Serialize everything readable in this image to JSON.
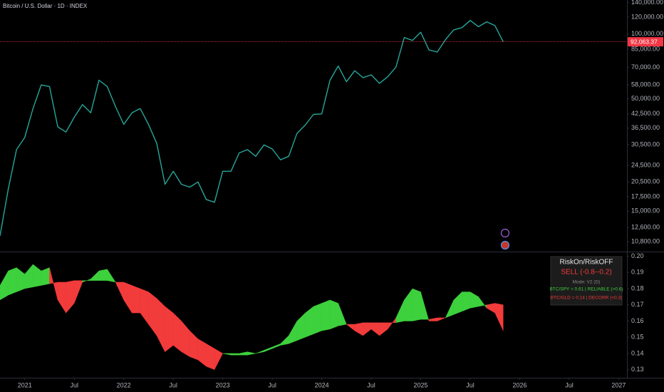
{
  "chart_data": [
    {
      "type": "line",
      "title": "Bitcoin / U.S. Dollar · 1D · INDEX",
      "x": [
        "2020-10",
        "2020-11",
        "2020-12",
        "2021-01",
        "2021-02",
        "2021-03",
        "2021-04",
        "2021-05",
        "2021-06",
        "2021-07",
        "2021-08",
        "2021-09",
        "2021-10",
        "2021-11",
        "2021-12",
        "2022-01",
        "2022-02",
        "2022-03",
        "2022-04",
        "2022-05",
        "2022-06",
        "2022-07",
        "2022-08",
        "2022-09",
        "2022-10",
        "2022-11",
        "2022-12",
        "2023-01",
        "2023-02",
        "2023-03",
        "2023-04",
        "2023-05",
        "2023-06",
        "2023-07",
        "2023-08",
        "2023-09",
        "2023-10",
        "2023-11",
        "2023-12",
        "2024-01",
        "2024-02",
        "2024-03",
        "2024-04",
        "2024-05",
        "2024-06",
        "2024-07",
        "2024-08",
        "2024-09",
        "2024-10",
        "2024-11",
        "2024-12",
        "2025-01",
        "2025-02",
        "2025-03",
        "2025-04",
        "2025-05",
        "2025-06",
        "2025-07",
        "2025-08",
        "2025-09",
        "2025-10",
        "2025-11"
      ],
      "values": [
        11500,
        19000,
        29000,
        33000,
        45000,
        58000,
        57000,
        37000,
        35000,
        41000,
        47000,
        43000,
        61000,
        57000,
        46000,
        38000,
        43000,
        45000,
        38000,
        31000,
        20000,
        23000,
        20000,
        19400,
        20500,
        17000,
        16500,
        23000,
        23000,
        28000,
        29000,
        27000,
        30500,
        29200,
        26000,
        27000,
        34500,
        37700,
        42300,
        42500,
        61000,
        71000,
        60000,
        67500,
        62700,
        64600,
        59000,
        63300,
        70200,
        96400,
        93400,
        102000,
        84300,
        82500,
        94200,
        104600,
        107100,
        115700,
        108200,
        114000,
        109500,
        92063.37
      ],
      "color": "#26a69a",
      "xlim": [
        "2020-10",
        "2027-02"
      ],
      "ylim": [
        9800,
        144000
      ],
      "log_scale": true,
      "yticks": [
        {
          "value": 140000,
          "label": "140,000.00"
        },
        {
          "value": 120000,
          "label": "120,000.00"
        },
        {
          "value": 100000,
          "label": "100,000.00"
        },
        {
          "value": 85000,
          "label": "85,000.00"
        },
        {
          "value": 70000,
          "label": "70,000.00"
        },
        {
          "value": 58000,
          "label": "58,000.00"
        },
        {
          "value": 50000,
          "label": "50,000.00"
        },
        {
          "value": 42500,
          "label": "42,500.00"
        },
        {
          "value": 36500,
          "label": "36,500.00"
        },
        {
          "value": 30500,
          "label": "30,500.00"
        },
        {
          "value": 24500,
          "label": "24,500.00"
        },
        {
          "value": 20500,
          "label": "20,500.00"
        },
        {
          "value": 17500,
          "label": "17,500.00"
        },
        {
          "value": 15000,
          "label": "15,000.00"
        },
        {
          "value": 12600,
          "label": "12,600.00"
        },
        {
          "value": 10800,
          "label": "10,800.00"
        }
      ],
      "last_price": {
        "value": 92063.37,
        "label": "92,063.37"
      },
      "last_price_color": "#f23645"
    },
    {
      "type": "fill-between",
      "x": [
        "2020-10",
        "2020-11",
        "2020-12",
        "2021-01",
        "2021-02",
        "2021-03",
        "2021-04",
        "2021-05",
        "2021-06",
        "2021-07",
        "2021-08",
        "2021-09",
        "2021-10",
        "2021-11",
        "2021-12",
        "2022-01",
        "2022-02",
        "2022-03",
        "2022-04",
        "2022-05",
        "2022-06",
        "2022-07",
        "2022-08",
        "2022-09",
        "2022-10",
        "2022-11",
        "2022-12",
        "2023-01",
        "2023-02",
        "2023-03",
        "2023-04",
        "2023-05",
        "2023-06",
        "2023-07",
        "2023-08",
        "2023-09",
        "2023-10",
        "2023-11",
        "2023-12",
        "2024-01",
        "2024-02",
        "2024-03",
        "2024-04",
        "2024-05",
        "2024-06",
        "2024-07",
        "2024-08",
        "2024-09",
        "2024-10",
        "2024-11",
        "2024-12",
        "2025-01",
        "2025-02",
        "2025-03",
        "2025-04",
        "2025-05",
        "2025-06",
        "2025-07",
        "2025-08",
        "2025-09",
        "2025-10",
        "2025-11"
      ],
      "values": [
        0.182,
        0.191,
        0.193,
        0.189,
        0.195,
        0.191,
        0.193,
        0.173,
        0.165,
        0.171,
        0.184,
        0.186,
        0.191,
        0.192,
        0.184,
        0.173,
        0.165,
        0.165,
        0.158,
        0.151,
        0.141,
        0.145,
        0.141,
        0.138,
        0.136,
        0.132,
        0.13,
        0.14,
        0.14,
        0.14,
        0.141,
        0.14,
        0.142,
        0.144,
        0.146,
        0.151,
        0.16,
        0.165,
        0.169,
        0.171,
        0.173,
        0.171,
        0.158,
        0.154,
        0.151,
        0.155,
        0.151,
        0.155,
        0.162,
        0.173,
        0.18,
        0.178,
        0.16,
        0.16,
        0.162,
        0.173,
        0.178,
        0.178,
        0.175,
        0.168,
        0.165,
        0.154
      ],
      "baseline": [
        0.173,
        0.176,
        0.178,
        0.18,
        0.181,
        0.182,
        0.183,
        0.184,
        0.184,
        0.185,
        0.185,
        0.185,
        0.185,
        0.185,
        0.184,
        0.184,
        0.182,
        0.18,
        0.178,
        0.174,
        0.169,
        0.165,
        0.16,
        0.154,
        0.149,
        0.146,
        0.143,
        0.14,
        0.139,
        0.139,
        0.139,
        0.14,
        0.141,
        0.143,
        0.145,
        0.146,
        0.148,
        0.15,
        0.152,
        0.154,
        0.155,
        0.157,
        0.158,
        0.158,
        0.159,
        0.159,
        0.159,
        0.159,
        0.159,
        0.16,
        0.16,
        0.161,
        0.161,
        0.162,
        0.162,
        0.164,
        0.166,
        0.168,
        0.169,
        0.17,
        0.171,
        0.17
      ],
      "colors": {
        "above": "#3dd13d",
        "below": "#f23b3b"
      },
      "xlim": [
        "2020-10",
        "2027-02"
      ],
      "ylim": [
        0.125,
        0.202
      ],
      "yticks": [
        {
          "value": 0.2,
          "label": "0.20"
        },
        0.19,
        0.18,
        0.17,
        0.16,
        0.15,
        0.14,
        0.13
      ],
      "xticks": [
        {
          "value": "2021-01",
          "label": "2021"
        },
        {
          "value": "2021-07",
          "label": "Jul"
        },
        {
          "value": "2022-01",
          "label": "2022"
        },
        {
          "value": "2022-07",
          "label": "Jul"
        },
        {
          "value": "2023-01",
          "label": "2023"
        },
        {
          "value": "2023-07",
          "label": "Jul"
        },
        {
          "value": "2024-01",
          "label": "2024"
        },
        {
          "value": "2024-07",
          "label": "Jul"
        },
        {
          "value": "2025-01",
          "label": "2025"
        },
        {
          "value": "2025-07",
          "label": "Jul"
        },
        {
          "value": "2026-01",
          "label": "2026"
        },
        {
          "value": "2026-07",
          "label": "Jul"
        },
        {
          "value": "2027-01",
          "label": "2027"
        }
      ],
      "info_panel": [
        {
          "text": "RiskOn/RiskOFF",
          "color": "#e6e6e6"
        },
        {
          "text": "SELL (-0.8--0.2)",
          "color": "#f23b3b"
        },
        {
          "text": "Mode: V2 (D)",
          "color": "#8a8a8a"
        },
        {
          "text": "BTC/SPY = 0.61 | RELIABLE (>0.6)",
          "color": "#3dd13d"
        },
        {
          "text": "BTC/GLD = 0.14 | DECORR (<0.3)",
          "color": "#f23b3b"
        }
      ]
    }
  ]
}
